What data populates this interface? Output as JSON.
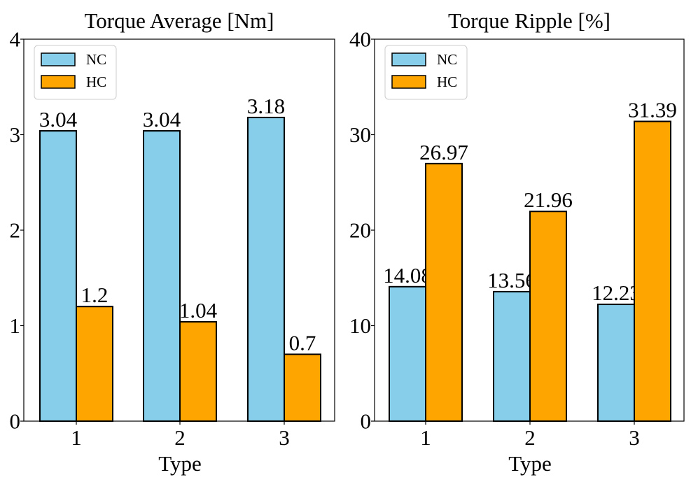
{
  "chart_data": [
    {
      "type": "bar",
      "title": "Torque Average [Nm]",
      "xlabel": "Type",
      "ylabel": "",
      "categories": [
        "1",
        "2",
        "3"
      ],
      "ylim": [
        0,
        4
      ],
      "yticks": [
        0,
        1,
        2,
        3,
        4
      ],
      "ytick_labels": [
        "0",
        "1",
        "2",
        "3",
        "4"
      ],
      "series": [
        {
          "name": "NC",
          "color": "#87CEEB",
          "values": [
            3.04,
            3.04,
            3.18
          ],
          "labels": [
            "3.04",
            "3.04",
            "3.18"
          ]
        },
        {
          "name": "HC",
          "color": "#FFA500",
          "values": [
            1.2,
            1.04,
            0.7
          ],
          "labels": [
            "1.2",
            "1.04",
            "0.7"
          ]
        }
      ],
      "legend": "top-left",
      "grid": false
    },
    {
      "type": "bar",
      "title": "Torque Ripple [%]",
      "xlabel": "Type",
      "ylabel": "",
      "categories": [
        "1",
        "2",
        "3"
      ],
      "ylim": [
        0,
        40
      ],
      "yticks": [
        0,
        10,
        20,
        30,
        40
      ],
      "ytick_labels": [
        "0",
        "10",
        "20",
        "30",
        "40"
      ],
      "series": [
        {
          "name": "NC",
          "color": "#87CEEB",
          "values": [
            14.08,
            13.56,
            12.23
          ],
          "labels": [
            "14.08",
            "13.56",
            "12.23"
          ]
        },
        {
          "name": "HC",
          "color": "#FFA500",
          "values": [
            26.97,
            21.96,
            31.39
          ],
          "labels": [
            "26.97",
            "21.96",
            "31.39"
          ]
        }
      ],
      "legend": "top-left",
      "grid": false
    }
  ]
}
